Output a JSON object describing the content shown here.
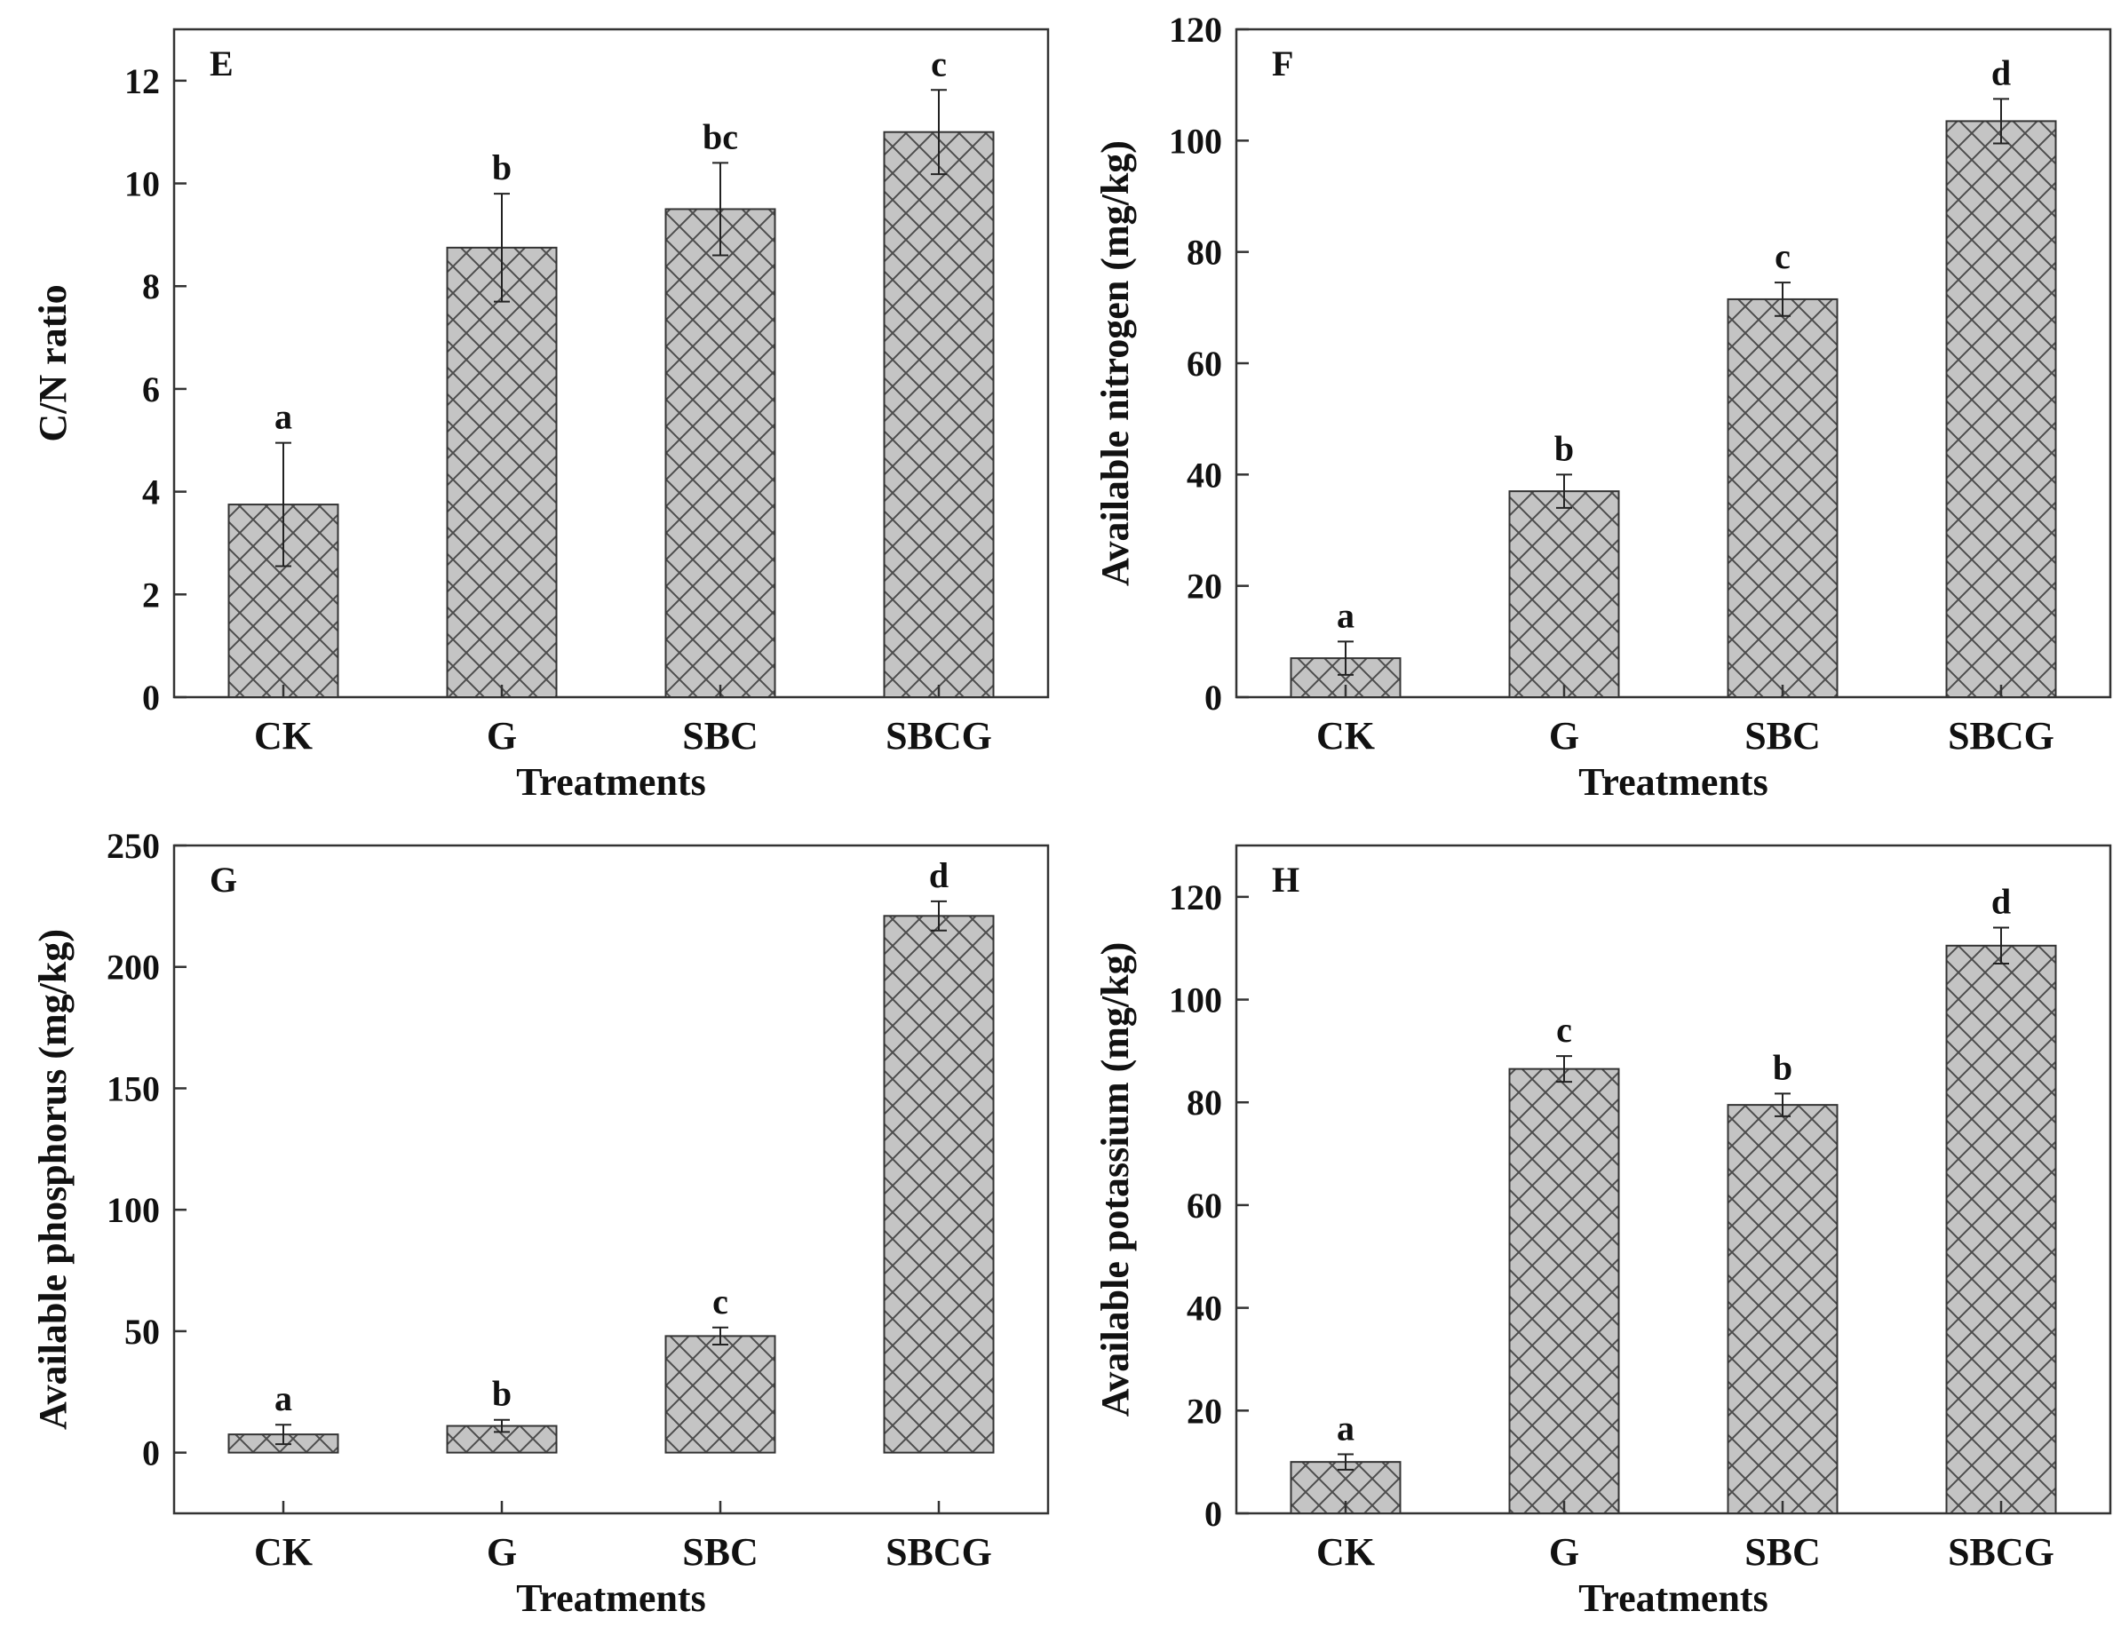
{
  "style": {
    "bar_fill": "#c4c4c4",
    "hatch_color": "#4d4d4d",
    "frame_color": "#333333",
    "hatch_pattern": "cross-hatch"
  },
  "chart_data": [
    {
      "type": "bar",
      "panel_label": "E",
      "xlabel": "Treatments",
      "ylabel": "C/N ratio",
      "categories": [
        "CK",
        "G",
        "SBC",
        "SBCG"
      ],
      "values": [
        3.75,
        8.75,
        9.5,
        11.0
      ],
      "errors": [
        1.2,
        1.05,
        0.9,
        0.82
      ],
      "significance": [
        "a",
        "b",
        "bc",
        "c"
      ],
      "ylim": [
        0,
        13
      ],
      "yticks": [
        0,
        2,
        4,
        6,
        8,
        10,
        12
      ]
    },
    {
      "type": "bar",
      "panel_label": "F",
      "xlabel": "Treatments",
      "ylabel": "Available nitrogen (mg/kg)",
      "categories": [
        "CK",
        "G",
        "SBC",
        "SBCG"
      ],
      "values": [
        7,
        37,
        71.5,
        103.5
      ],
      "errors": [
        3,
        3,
        3,
        4
      ],
      "significance": [
        "a",
        "b",
        "c",
        "d"
      ],
      "ylim": [
        0,
        120
      ],
      "yticks": [
        0,
        20,
        40,
        60,
        80,
        100,
        120
      ]
    },
    {
      "type": "bar",
      "panel_label": "G",
      "xlabel": "Treatments",
      "ylabel": "Available phosphorus (mg/kg)",
      "categories": [
        "CK",
        "G",
        "SBC",
        "SBCG"
      ],
      "values": [
        7.5,
        11,
        48,
        221
      ],
      "errors": [
        4,
        2.5,
        3.5,
        6
      ],
      "significance": [
        "a",
        "b",
        "c",
        "d"
      ],
      "ylim": [
        -25,
        250
      ],
      "yticks": [
        0,
        50,
        100,
        150,
        200,
        250
      ]
    },
    {
      "type": "bar",
      "panel_label": "H",
      "xlabel": "Treatments",
      "ylabel": "Available potassium (mg/kg)",
      "categories": [
        "CK",
        "G",
        "SBC",
        "SBCG"
      ],
      "values": [
        10,
        86.5,
        79.5,
        110.5
      ],
      "errors": [
        1.5,
        2.5,
        2.2,
        3.5
      ],
      "significance": [
        "a",
        "c",
        "b",
        "d"
      ],
      "ylim": [
        0,
        130
      ],
      "yticks": [
        0,
        20,
        40,
        60,
        80,
        100,
        120
      ]
    }
  ]
}
